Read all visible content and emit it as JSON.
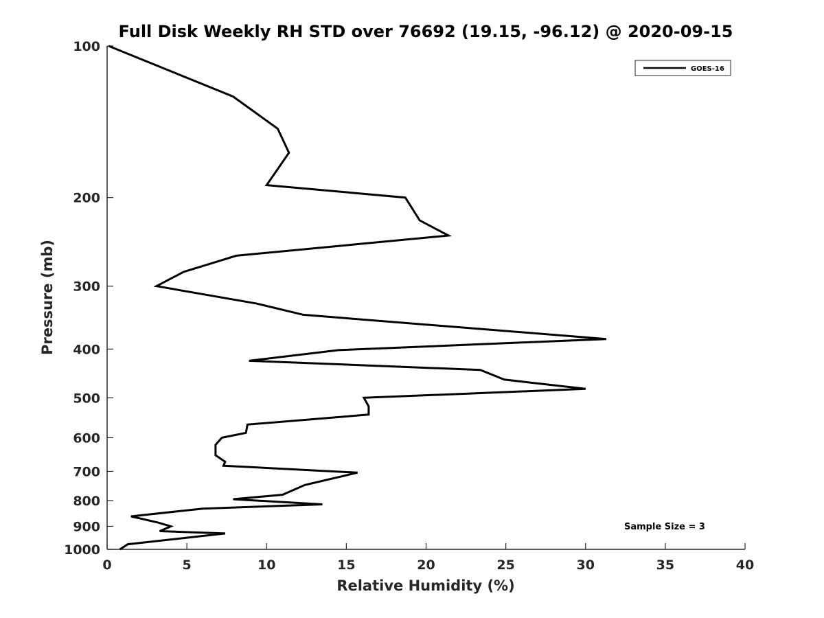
{
  "chart_data": {
    "type": "line",
    "title": "Full Disk Weekly RH STD over 76692 (19.15, -96.12) @ 2020-09-15",
    "xlabel": "Relative Humidity (%)",
    "ylabel": "Pressure (mb)",
    "xlim": [
      0,
      40
    ],
    "ylim": [
      100,
      1000
    ],
    "y_scale": "log",
    "y_reversed": true,
    "x_ticks": [
      0,
      5,
      10,
      15,
      20,
      25,
      30,
      35,
      40
    ],
    "y_ticks": [
      100,
      200,
      300,
      400,
      500,
      600,
      700,
      800,
      900,
      1000
    ],
    "grid": false,
    "legend_position": "top-right",
    "line_color": "#000000",
    "series": [
      {
        "name": "GOES-16",
        "x": [
          0.1,
          7.9,
          10.7,
          11.4,
          10.0,
          18.7,
          19.6,
          21.4,
          8.1,
          4.8,
          3.1,
          9.4,
          12.3,
          31.3,
          14.5,
          8.9,
          23.4,
          24.9,
          30.0,
          16.1,
          16.4,
          16.4,
          8.8,
          8.7,
          7.2,
          6.8,
          6.8,
          7.4,
          7.3,
          15.7,
          12.4,
          11.0,
          7.9,
          13.5,
          6.0,
          1.5,
          3.2,
          4.0,
          3.3,
          7.4,
          1.3,
          0.8
        ],
        "y": [
          100,
          126,
          146,
          163,
          189,
          200,
          222,
          238,
          261,
          281,
          300,
          325,
          342,
          382,
          402,
          422,
          440,
          460,
          480,
          500,
          520,
          540,
          565,
          587,
          600,
          620,
          650,
          670,
          682,
          704,
          745,
          779,
          795,
          814,
          830,
          860,
          885,
          900,
          920,
          930,
          977,
          1000
        ]
      }
    ],
    "annotations": [
      "Sample Size = 3"
    ]
  }
}
